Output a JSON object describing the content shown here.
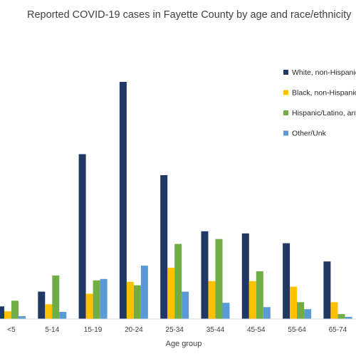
{
  "chart_data": {
    "type": "bar",
    "title": "Reported COVID-19 cases in Fayette County by age and race/ethnicity",
    "xlabel": "Age group",
    "ylabel": "",
    "categories": [
      "<5",
      "5-14",
      "15-19",
      "20-24",
      "25-34",
      "35-44",
      "45-54",
      "55-64",
      "65-74"
    ],
    "ylim": [
      0,
      340
    ],
    "grid": false,
    "legend_position": "right",
    "series": [
      {
        "name": "White, non-Hispanic",
        "color": "#1f3864",
        "values": [
          18,
          39,
          235,
          338,
          205,
          125,
          122,
          108,
          82
        ]
      },
      {
        "name": "Black, non-Hispanic",
        "color": "#ffc000",
        "values": [
          11,
          21,
          36,
          53,
          73,
          54,
          54,
          46,
          24
        ]
      },
      {
        "name": "Hispanic/Latino, any race",
        "color": "#70ad47",
        "values": [
          26,
          62,
          55,
          48,
          107,
          114,
          68,
          24,
          7
        ]
      },
      {
        "name": "Other/Unk",
        "color": "#5b9bd5",
        "values": [
          4,
          10,
          57,
          76,
          39,
          23,
          17,
          14,
          3
        ]
      }
    ]
  }
}
